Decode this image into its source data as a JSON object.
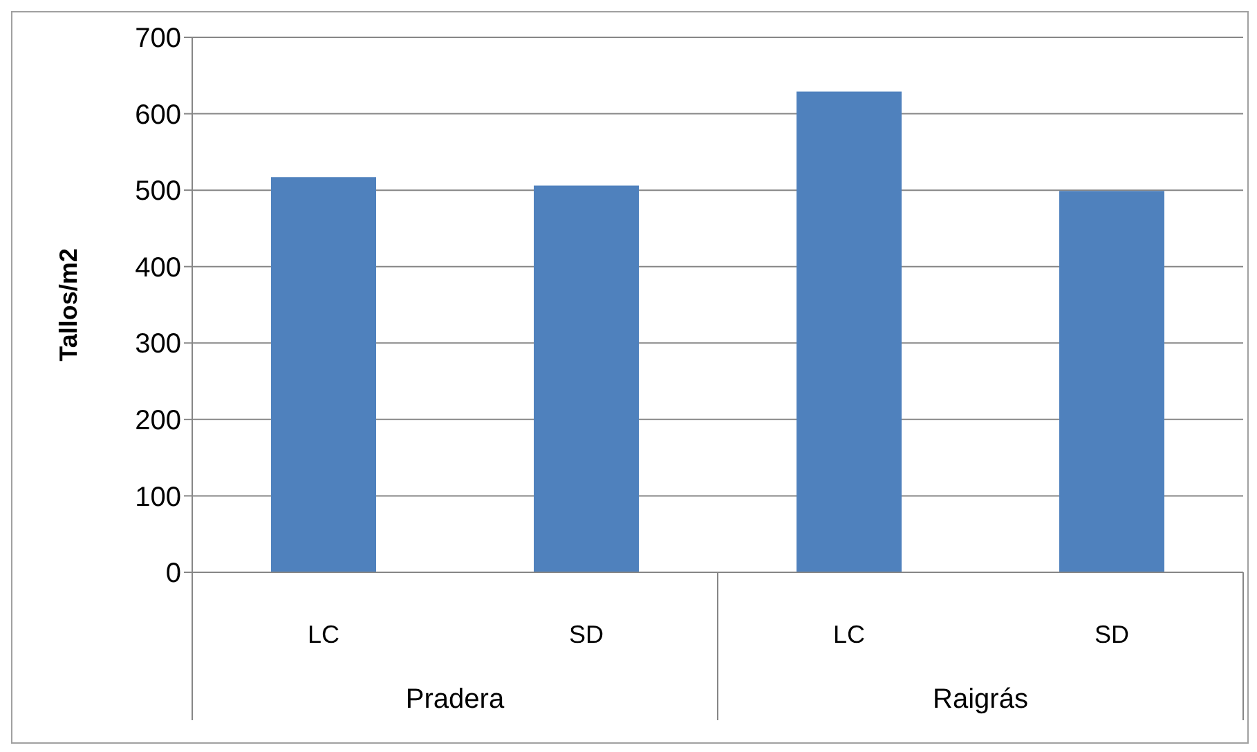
{
  "chart_data": {
    "type": "bar",
    "ylabel": "Tallos/m2",
    "categories": [
      "LC",
      "SD",
      "LC",
      "SD"
    ],
    "values": [
      517,
      506,
      629,
      499
    ],
    "color": "#4f81bd",
    "ylim": [
      0,
      700
    ],
    "yticks": [
      0,
      100,
      200,
      300,
      400,
      500,
      600,
      700
    ],
    "grid": "y",
    "annotations": [
      "Pradera",
      "Raigrás"
    ]
  }
}
